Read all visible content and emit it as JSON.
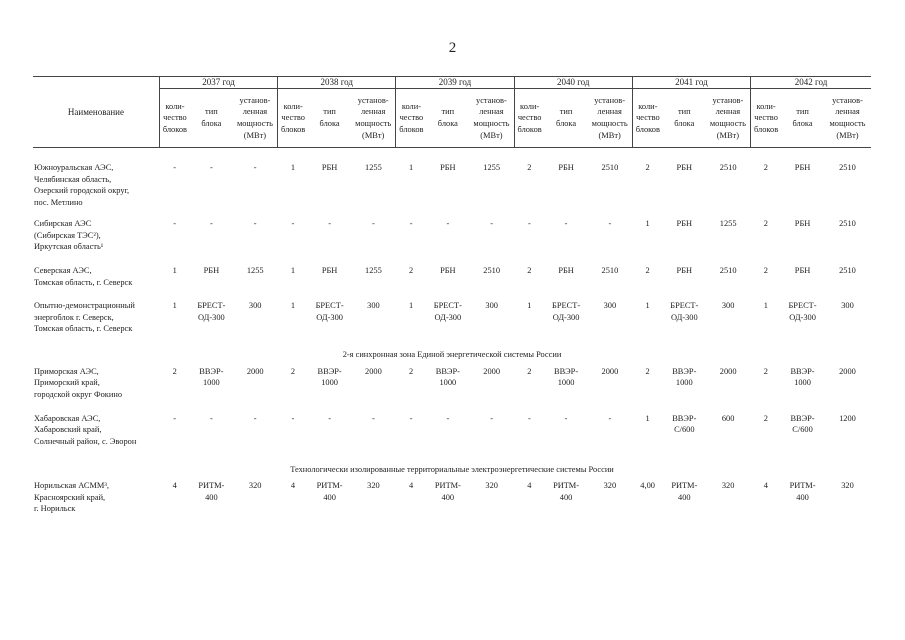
{
  "page_number": "2",
  "header": {
    "name_label": "Наименование",
    "years": [
      "2037 год",
      "2038 год",
      "2039 год",
      "2040 год",
      "2041 год",
      "2042 год"
    ],
    "sub_count": "коли-\nчество\nблоков",
    "sub_type": "тип\nблока",
    "sub_power": "установ-\nленная\nмощность\n(МВт)"
  },
  "rows": [
    {
      "type": "data",
      "name": "Южноуральская АЭС,\nЧелябинская область,\nОзерский городской округ,\nпос. Метлино",
      "cells": [
        [
          "-",
          "-",
          "-"
        ],
        [
          "1",
          "РБН",
          "1255"
        ],
        [
          "1",
          "РБН",
          "1255"
        ],
        [
          "2",
          "РБН",
          "2510"
        ],
        [
          "2",
          "РБН",
          "2510"
        ],
        [
          "2",
          "РБН",
          "2510"
        ]
      ]
    },
    {
      "type": "data",
      "name": "Сибирская АЭС\n(Сибирская ТЭС²),\nИркутская область¹",
      "cells": [
        [
          "-",
          "-",
          "-"
        ],
        [
          "-",
          "-",
          "-"
        ],
        [
          "-",
          "-",
          "-"
        ],
        [
          "-",
          "-",
          "-"
        ],
        [
          "1",
          "РБН",
          "1255"
        ],
        [
          "2",
          "РБН",
          "2510"
        ]
      ]
    },
    {
      "type": "data",
      "name": "Северская АЭС,\nТомская область, г. Северск",
      "cells": [
        [
          "1",
          "РБН",
          "1255"
        ],
        [
          "1",
          "РБН",
          "1255"
        ],
        [
          "2",
          "РБН",
          "2510"
        ],
        [
          "2",
          "РБН",
          "2510"
        ],
        [
          "2",
          "РБН",
          "2510"
        ],
        [
          "2",
          "РБН",
          "2510"
        ]
      ]
    },
    {
      "type": "data",
      "name": "Опытно-демонстрационный\nэнергоблок г. Северск,\nТомская область, г. Северск",
      "cells": [
        [
          "1",
          "БРЕСТ-\nОД-300",
          "300"
        ],
        [
          "1",
          "БРЕСТ-\nОД-300",
          "300"
        ],
        [
          "1",
          "БРЕСТ-\nОД-300",
          "300"
        ],
        [
          "1",
          "БРЕСТ-\nОД-300",
          "300"
        ],
        [
          "1",
          "БРЕСТ-\nОД-300",
          "300"
        ],
        [
          "1",
          "БРЕСТ-\nОД-300",
          "300"
        ]
      ]
    },
    {
      "type": "section",
      "label": "2-я синхронная зона Единой энергетической системы России"
    },
    {
      "type": "data",
      "name": "Приморская АЭС,\nПриморский край,\nгородской округ Фокино",
      "cells": [
        [
          "2",
          "ВВЭР-\n1000",
          "2000"
        ],
        [
          "2",
          "ВВЭР-\n1000",
          "2000"
        ],
        [
          "2",
          "ВВЭР-\n1000",
          "2000"
        ],
        [
          "2",
          "ВВЭР-\n1000",
          "2000"
        ],
        [
          "2",
          "ВВЭР-\n1000",
          "2000"
        ],
        [
          "2",
          "ВВЭР-\n1000",
          "2000"
        ]
      ]
    },
    {
      "type": "data",
      "name": "Хабаровская АЭС,\nХабаровский край,\nСолнечный район, с. Эворон",
      "cells": [
        [
          "-",
          "-",
          "-"
        ],
        [
          "-",
          "-",
          "-"
        ],
        [
          "-",
          "-",
          "-"
        ],
        [
          "-",
          "-",
          "-"
        ],
        [
          "1",
          "ВВЭР-\nС/600",
          "600"
        ],
        [
          "2",
          "ВВЭР-\nС/600",
          "1200"
        ]
      ]
    },
    {
      "type": "section",
      "label": "Технологически изолированные территориальные электроэнергетические системы России"
    },
    {
      "type": "data",
      "name": "Норильская АСММ³,\nКрасноярский край,\nг. Норильск",
      "cells": [
        [
          "4",
          "РИТМ-\n400",
          "320"
        ],
        [
          "4",
          "РИТМ-\n400",
          "320"
        ],
        [
          "4",
          "РИТМ-\n400",
          "320"
        ],
        [
          "4",
          "РИТМ-\n400",
          "320"
        ],
        [
          "4,00",
          "РИТМ-\n400",
          "320"
        ],
        [
          "4",
          "РИТМ-\n400",
          "320"
        ]
      ]
    }
  ]
}
